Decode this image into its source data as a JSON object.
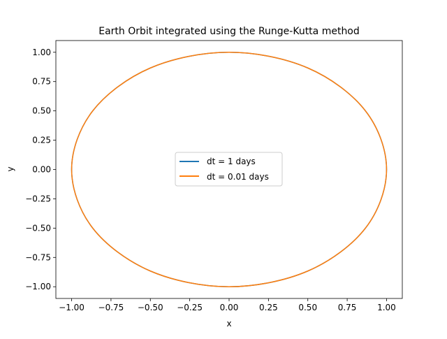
{
  "chart_data": {
    "type": "line",
    "title": "Earth Orbit integrated using the Runge-Kutta method",
    "xlabel": "x",
    "ylabel": "y",
    "xlim": [
      -1.1,
      1.1
    ],
    "ylim": [
      -1.1,
      1.1
    ],
    "x_ticks": [
      -1.0,
      -0.75,
      -0.5,
      -0.25,
      0.0,
      0.25,
      0.5,
      0.75,
      1.0
    ],
    "x_tick_labels": [
      "−1.00",
      "−0.75",
      "−0.50",
      "−0.25",
      "0.00",
      "0.25",
      "0.50",
      "0.75",
      "1.00"
    ],
    "y_ticks": [
      -1.0,
      -0.75,
      -0.5,
      -0.25,
      0.0,
      0.25,
      0.5,
      0.75,
      1.0
    ],
    "y_tick_labels": [
      "−1.00",
      "−0.75",
      "−0.50",
      "−0.25",
      "0.00",
      "0.25",
      "0.50",
      "0.75",
      "1.00"
    ],
    "grid": false,
    "legend_position": "center",
    "series": [
      {
        "name": "dt = 1 days",
        "color": "#1f77b4",
        "x": [
          1.0,
          0.866,
          0.5,
          0.0,
          -0.5,
          -0.866,
          -1.0,
          -0.866,
          -0.5,
          0.0,
          0.5,
          0.866,
          1.0
        ],
        "y": [
          0.0,
          0.5,
          0.866,
          1.0,
          0.866,
          0.5,
          0.0,
          -0.5,
          -0.866,
          -1.0,
          -0.866,
          -0.5,
          0.0
        ]
      },
      {
        "name": "dt = 0.01 days",
        "color": "#ff7f0e",
        "x": [
          1.0,
          0.866,
          0.5,
          0.0,
          -0.5,
          -0.866,
          -1.0,
          -0.866,
          -0.5,
          0.0,
          0.5,
          0.866,
          1.0
        ],
        "y": [
          0.0,
          0.5,
          0.866,
          1.0,
          0.866,
          0.5,
          0.0,
          -0.5,
          -0.866,
          -1.0,
          -0.866,
          -0.5,
          0.0
        ]
      }
    ]
  }
}
